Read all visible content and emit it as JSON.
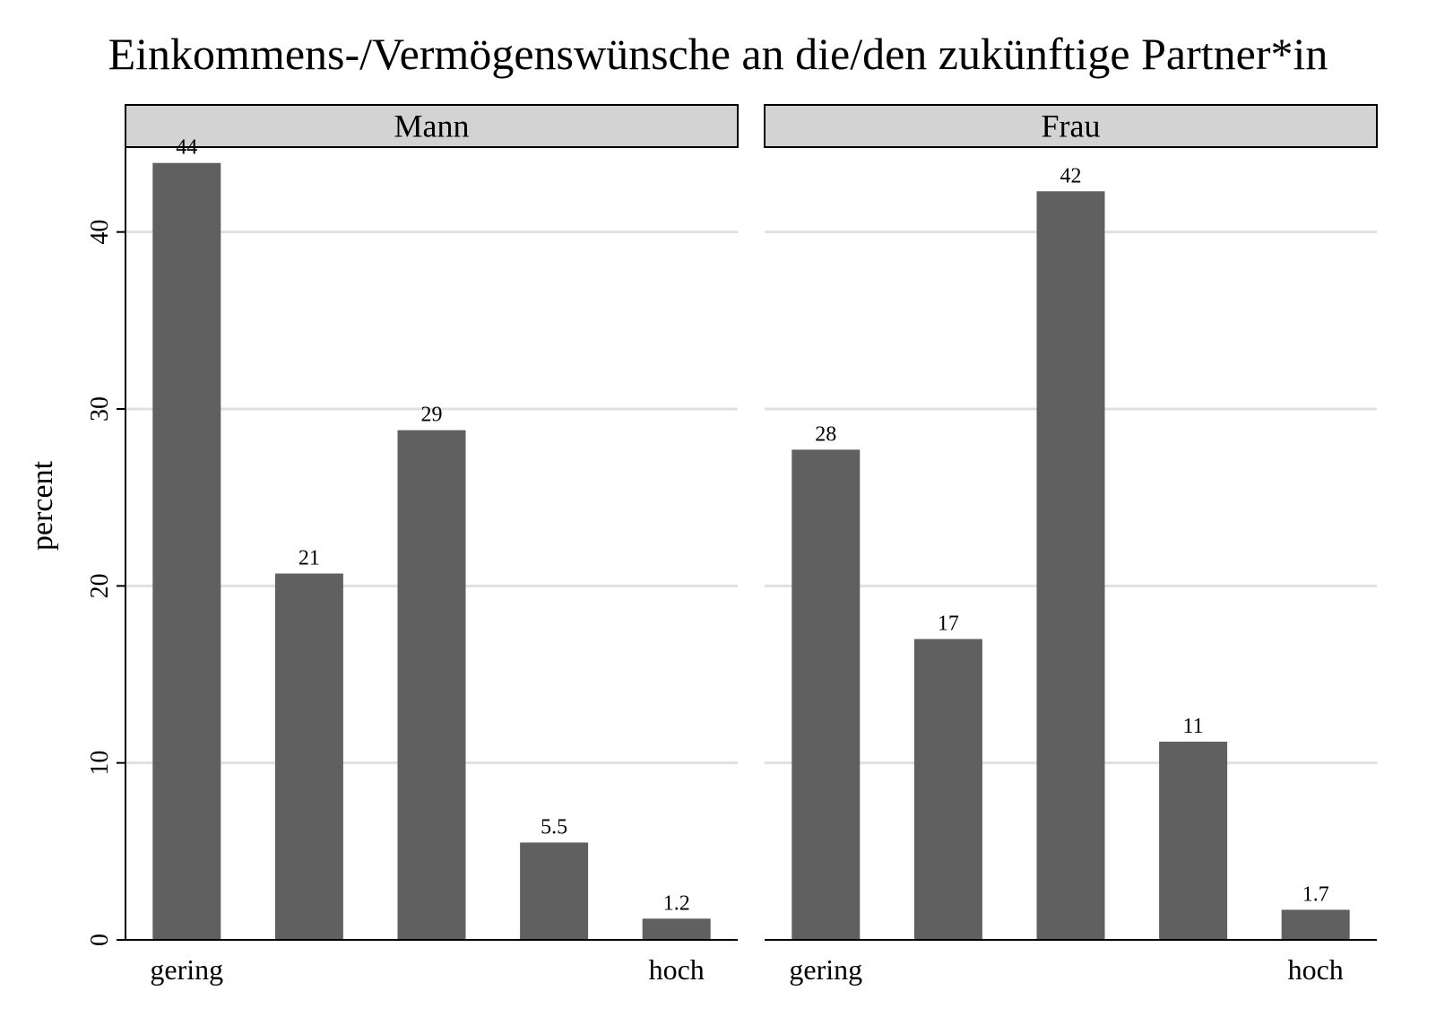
{
  "chart_data": {
    "type": "bar",
    "title": "Einkommens-/Vermögenswünsche an die/den zukünftige Partner*in",
    "ylabel": "percent",
    "xlabel": "",
    "ylim": [
      0,
      45
    ],
    "yticks": [
      0,
      10,
      20,
      30,
      40
    ],
    "ytick_labels": [
      "0",
      "10",
      "20",
      "30",
      "40"
    ],
    "grid": true,
    "bar_color": "#606060",
    "grid_color": "#e0e0e0",
    "strip_color": "#d3d3d3",
    "panels": [
      {
        "strip_label": "Mann",
        "categories": [
          "gering",
          "",
          "",
          "",
          "hoch"
        ],
        "values": [
          43.9,
          20.7,
          28.8,
          5.5,
          1.2
        ],
        "data_labels": [
          "44",
          "21",
          "29",
          "5.5",
          "1.2"
        ]
      },
      {
        "strip_label": "Frau",
        "categories": [
          "gering",
          "",
          "",
          "",
          "hoch"
        ],
        "values": [
          27.7,
          17.0,
          42.3,
          11.2,
          1.7
        ],
        "data_labels": [
          "28",
          "17",
          "42",
          "11",
          "1.7"
        ]
      }
    ]
  }
}
